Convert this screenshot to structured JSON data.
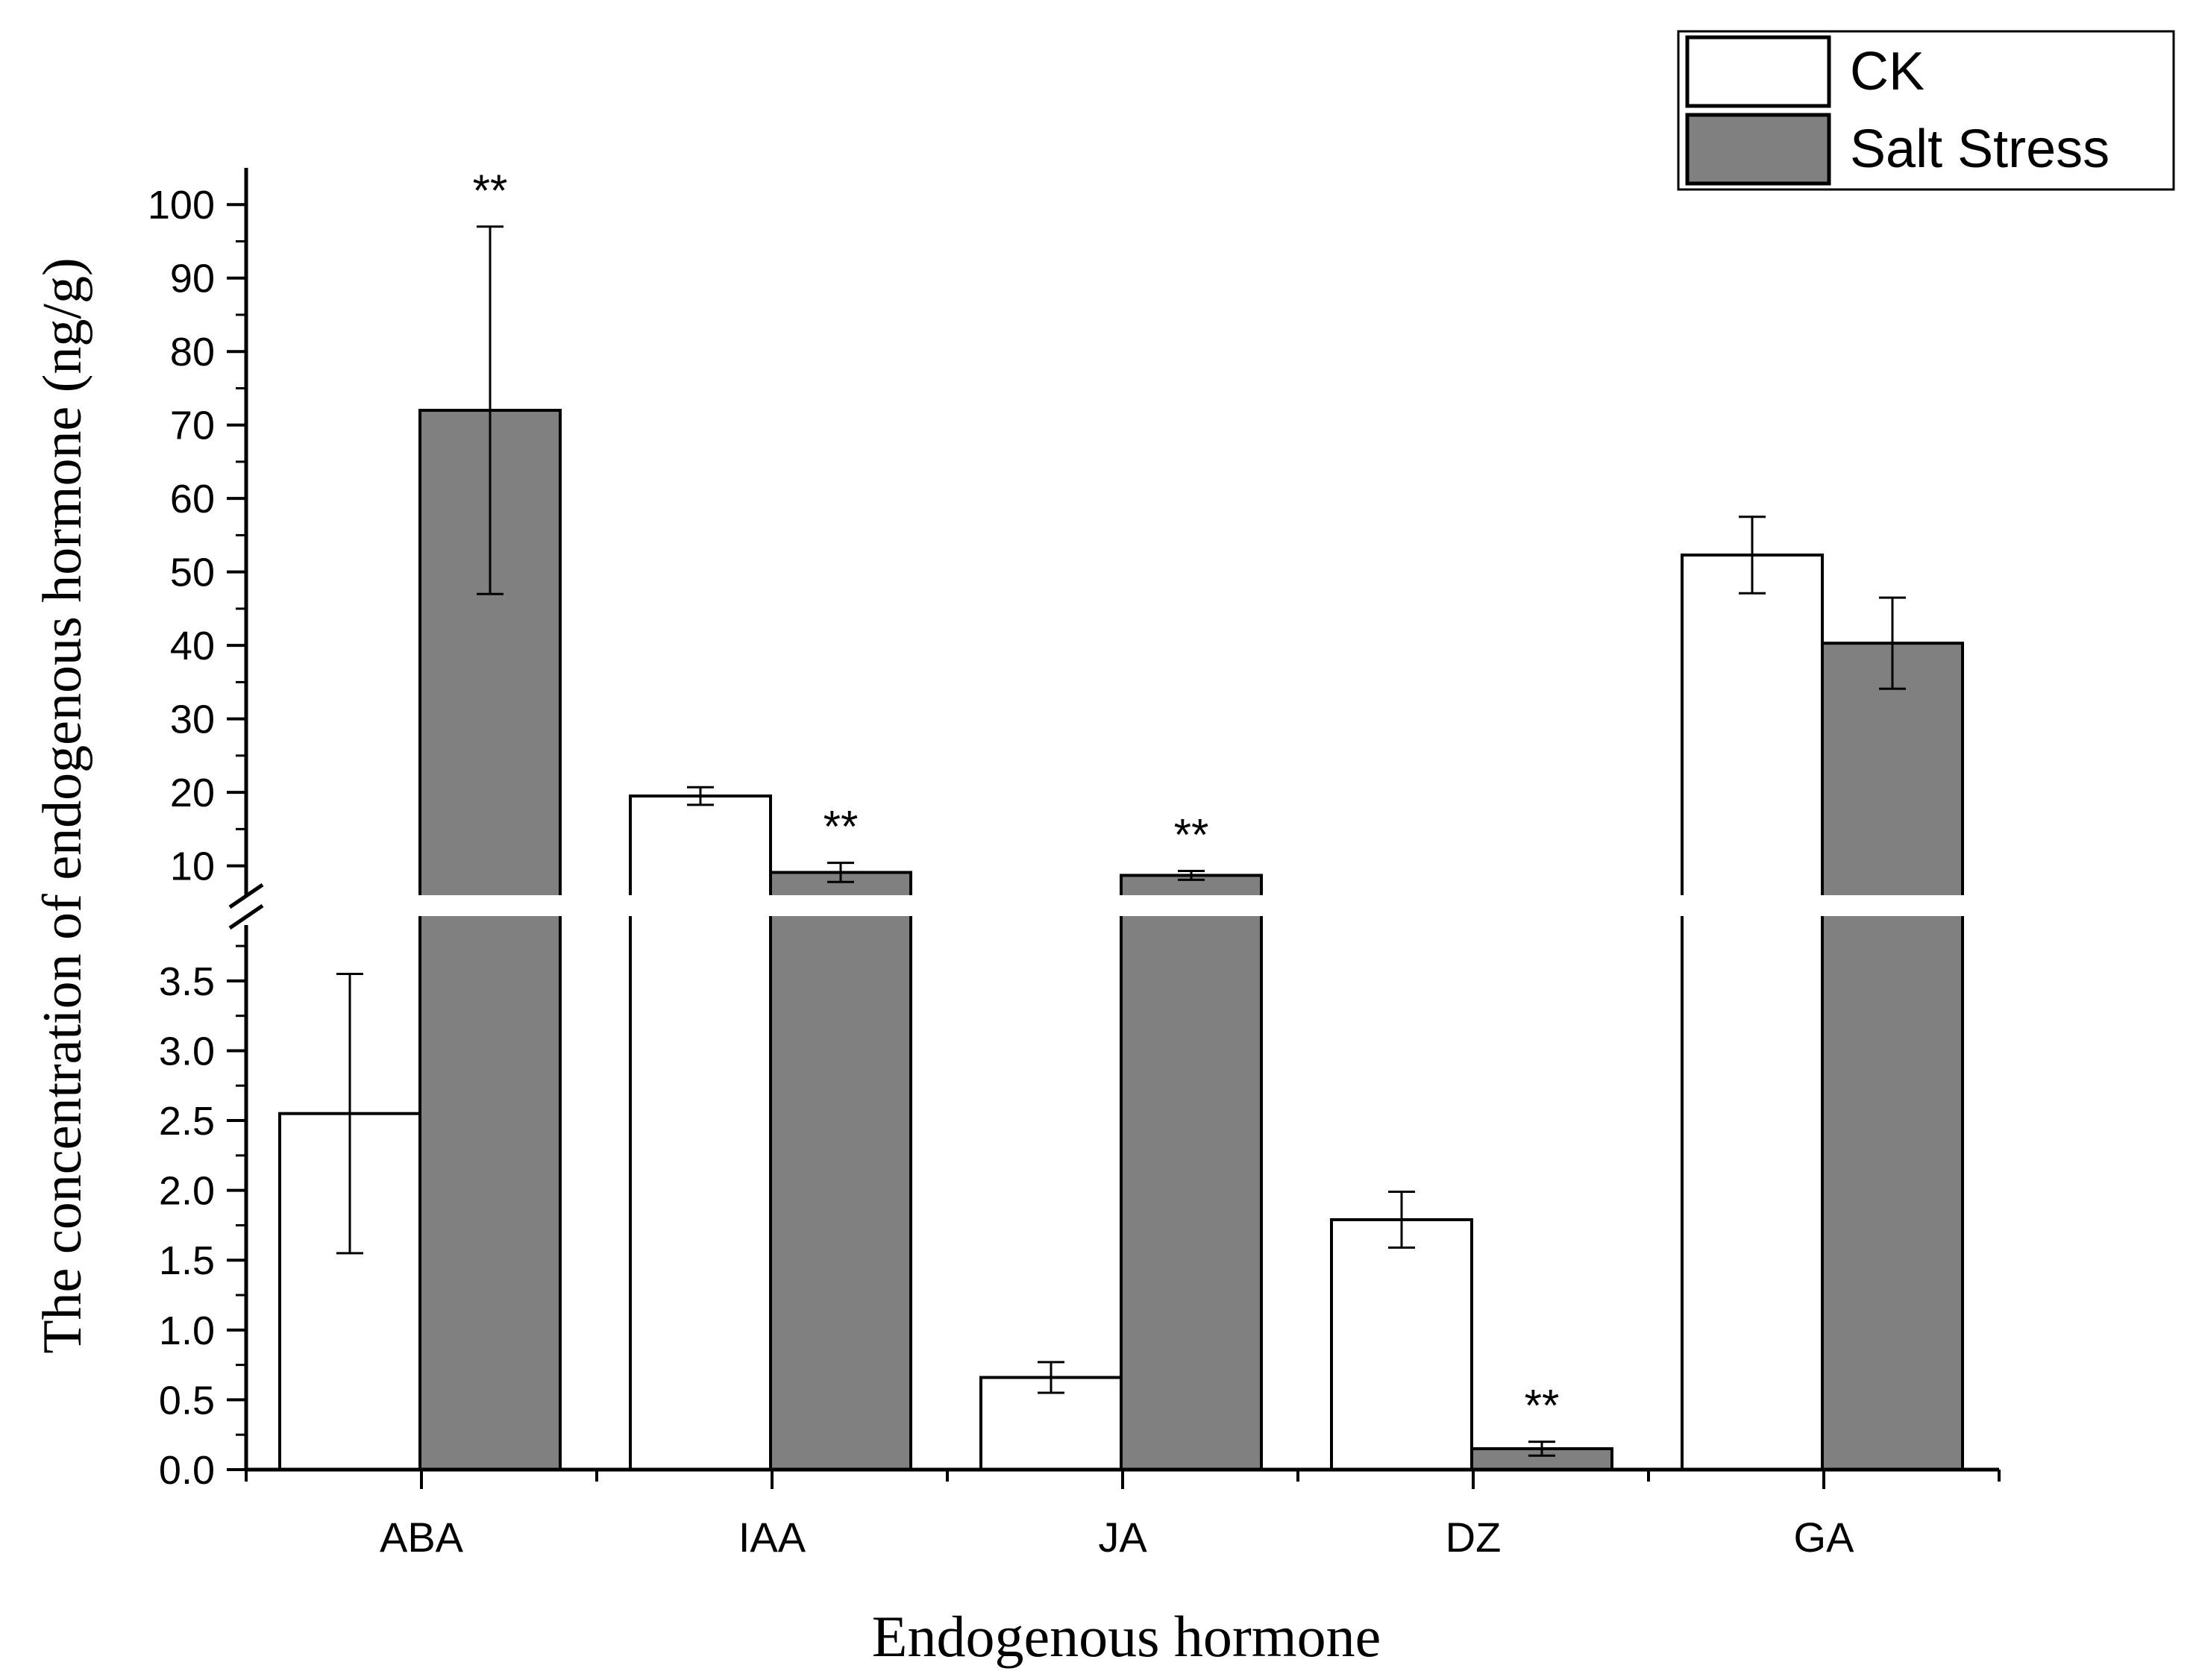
{
  "chart_data": {
    "type": "bar",
    "title": "",
    "xlabel": "Endogenous hormone",
    "ylabel": "The concentration of endogenous hormone (ng/g)",
    "categories": [
      "ABA",
      "IAA",
      "JA",
      "DZ",
      "GA"
    ],
    "series": [
      {
        "name": "CK",
        "color": "#ffffff",
        "values": [
          2.55,
          19.5,
          0.66,
          1.79,
          52.3
        ],
        "errors": [
          1.0,
          1.2,
          0.11,
          0.2,
          5.2
        ],
        "significance": [
          "",
          "",
          "",
          "",
          ""
        ]
      },
      {
        "name": "Salt Stress",
        "color": "#808080",
        "values": [
          72.0,
          9.1,
          8.7,
          0.15,
          40.3
        ],
        "errors": [
          25.0,
          1.3,
          0.6,
          0.05,
          6.2
        ],
        "significance": [
          "**",
          "**",
          "**",
          "**",
          ""
        ]
      }
    ],
    "axis_break": {
      "lower_max": 3.9,
      "upper_min": 6.0
    },
    "lower_ylim": [
      0,
      3.9
    ],
    "lower_ticks": [
      "0.0",
      "0.5",
      "1.0",
      "1.5",
      "2.0",
      "2.5",
      "3.0",
      "3.5"
    ],
    "upper_ylim": [
      6,
      105
    ],
    "upper_ticks": [
      "10",
      "20",
      "30",
      "40",
      "50",
      "60",
      "70",
      "80",
      "90",
      "100"
    ],
    "legend_position": "top-right",
    "grid": false
  }
}
